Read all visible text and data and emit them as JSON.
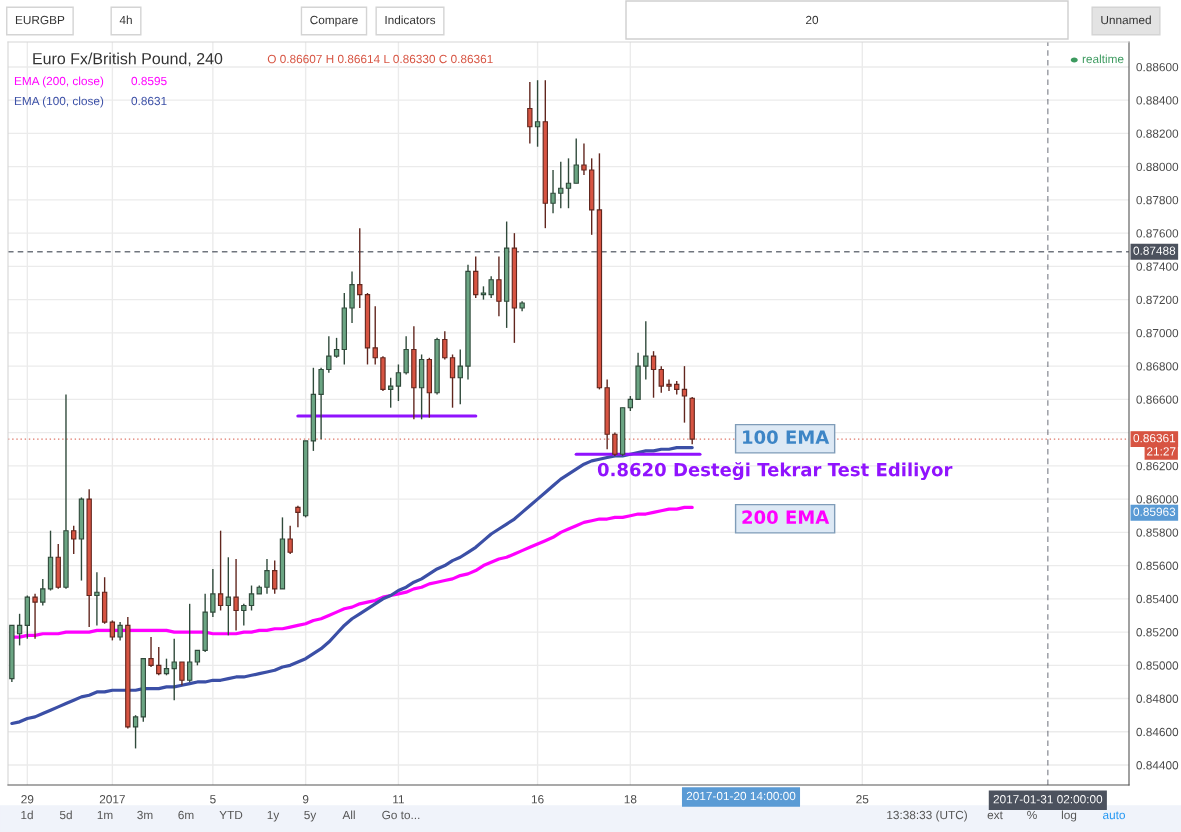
{
  "chart_data": {
    "type": "candlestick",
    "title": "Euro Fx/British Pound, 240",
    "categories": [
      null,
      null,
      "29",
      null,
      null,
      null,
      null,
      null,
      null,
      null,
      null,
      null,
      null,
      "2017",
      null,
      null,
      null,
      null,
      null,
      null,
      null,
      null,
      null,
      null,
      null,
      null,
      "5",
      null,
      null,
      null,
      null,
      null,
      null,
      null,
      null,
      null,
      null,
      null,
      "9",
      null,
      null,
      null,
      null,
      null,
      null,
      null,
      null,
      null,
      null,
      null,
      "11",
      null,
      null,
      null,
      null,
      null,
      null,
      null,
      null,
      null,
      null,
      null,
      null,
      null,
      null,
      null,
      null,
      null,
      "16",
      null,
      null,
      null,
      null,
      null,
      null,
      null,
      null,
      null,
      null,
      null,
      "18",
      null,
      null,
      null,
      null,
      null,
      null,
      null,
      null,
      null,
      null,
      null,
      null,
      null,
      null,
      null,
      null,
      null,
      null,
      null,
      null,
      null,
      null,
      null,
      null,
      null,
      null,
      null,
      null,
      null,
      "25",
      null,
      null,
      null,
      null,
      null,
      null,
      null,
      null,
      null,
      null,
      null,
      null,
      null,
      null,
      null,
      null,
      null,
      null,
      null,
      null,
      null,
      null,
      null,
      "2017-01-31 02:00:00",
      null,
      null,
      null,
      null,
      null,
      null,
      null,
      null,
      null,
      null
    ],
    "series": [
      {
        "type": "candlestick",
        "ohlc": [
          [
            0.8492,
            0.8524,
            0.849,
            0.8524
          ],
          [
            0.8519,
            0.8531,
            0.8512,
            0.8524
          ],
          [
            0.8524,
            0.8542,
            0.8516,
            0.8541
          ],
          [
            0.8541,
            0.8543,
            0.8516,
            0.8538
          ],
          [
            0.8538,
            0.8552,
            0.8536,
            0.8546
          ],
          [
            0.8546,
            0.8581,
            0.8545,
            0.8565
          ],
          [
            0.8565,
            0.8573,
            0.8546,
            0.8547
          ],
          [
            0.8547,
            0.8663,
            0.8546,
            0.8581
          ],
          [
            0.8581,
            0.8584,
            0.8567,
            0.8576
          ],
          [
            0.8576,
            0.8601,
            0.8551,
            0.86
          ],
          [
            0.86,
            0.8606,
            0.8523,
            0.8542
          ],
          [
            0.8542,
            0.8556,
            0.8524,
            0.8544
          ],
          [
            0.8544,
            0.8553,
            0.8525,
            0.8526
          ],
          [
            0.8526,
            0.8527,
            0.8515,
            0.8517
          ],
          [
            0.8517,
            0.8526,
            0.8515,
            0.8524
          ],
          [
            0.8524,
            0.8529,
            0.8462,
            0.8463
          ],
          [
            0.8463,
            0.847,
            0.845,
            0.8469
          ],
          [
            0.8469,
            0.8504,
            0.8466,
            0.8504
          ],
          [
            0.8504,
            0.8517,
            0.8499,
            0.85
          ],
          [
            0.85,
            0.8511,
            0.8494,
            0.8495
          ],
          [
            0.8495,
            0.8504,
            0.8494,
            0.8498
          ],
          [
            0.8498,
            0.8516,
            0.8479,
            0.8502
          ],
          [
            0.8502,
            0.8502,
            0.8488,
            0.8491
          ],
          [
            0.8491,
            0.8537,
            0.849,
            0.8502
          ],
          [
            0.8502,
            0.8509,
            0.85,
            0.8509
          ],
          [
            0.8509,
            0.8543,
            0.8508,
            0.8532
          ],
          [
            0.8532,
            0.8558,
            0.8529,
            0.8543
          ],
          [
            0.8543,
            0.8581,
            0.8533,
            0.8536
          ],
          [
            0.8536,
            0.8565,
            0.8518,
            0.8541
          ],
          [
            0.8541,
            0.8564,
            0.8521,
            0.8533
          ],
          [
            0.8533,
            0.8537,
            0.8524,
            0.8536
          ],
          [
            0.8536,
            0.8548,
            0.8533,
            0.8543
          ],
          [
            0.8543,
            0.8548,
            0.8543,
            0.8547
          ],
          [
            0.8547,
            0.8564,
            0.8543,
            0.8557
          ],
          [
            0.8557,
            0.8563,
            0.8543,
            0.8546
          ],
          [
            0.8546,
            0.8589,
            0.8546,
            0.8576
          ],
          [
            0.8576,
            0.8584,
            0.8567,
            0.8568
          ],
          [
            0.8595,
            0.8596,
            0.8583,
            0.8592
          ],
          [
            0.859,
            0.8635,
            0.8589,
            0.8635
          ],
          [
            0.8635,
            0.8679,
            0.8629,
            0.8663
          ],
          [
            0.8663,
            0.8679,
            0.8636,
            0.8678
          ],
          [
            0.8678,
            0.8698,
            0.8676,
            0.8686
          ],
          [
            0.8686,
            0.8697,
            0.8685,
            0.869
          ],
          [
            0.869,
            0.8724,
            0.8681,
            0.8715
          ],
          [
            0.8715,
            0.8737,
            0.8706,
            0.8729
          ],
          [
            0.8729,
            0.8763,
            0.8715,
            0.8723
          ],
          [
            0.8723,
            0.8724,
            0.8681,
            0.8691
          ],
          [
            0.8691,
            0.8716,
            0.8681,
            0.8685
          ],
          [
            0.8685,
            0.8686,
            0.8665,
            0.8666
          ],
          [
            0.8666,
            0.8673,
            0.8655,
            0.8668
          ],
          [
            0.8668,
            0.8681,
            0.8659,
            0.8676
          ],
          [
            0.8676,
            0.8698,
            0.8675,
            0.869
          ],
          [
            0.869,
            0.8704,
            0.8648,
            0.8667
          ],
          [
            0.8667,
            0.8687,
            0.8648,
            0.8684
          ],
          [
            0.8684,
            0.8685,
            0.8649,
            0.8664
          ],
          [
            0.8664,
            0.8697,
            0.8663,
            0.8696
          ],
          [
            0.8696,
            0.8701,
            0.8684,
            0.8685
          ],
          [
            0.8685,
            0.8687,
            0.8655,
            0.8673
          ],
          [
            0.8673,
            0.869,
            0.8657,
            0.868
          ],
          [
            0.868,
            0.8741,
            0.8672,
            0.8737
          ],
          [
            0.8737,
            0.8746,
            0.8721,
            0.8723
          ],
          [
            0.8723,
            0.8728,
            0.872,
            0.8724
          ],
          [
            0.8723,
            0.8734,
            0.8721,
            0.8732
          ],
          [
            0.8732,
            0.8746,
            0.871,
            0.8719
          ],
          [
            0.8719,
            0.8767,
            0.8703,
            0.8751
          ],
          [
            0.8751,
            0.876,
            0.8694,
            0.8715
          ],
          [
            0.8715,
            0.8719,
            0.8713,
            0.8718
          ],
          [
            0.8835,
            0.8851,
            0.8814,
            0.8824
          ],
          [
            0.8824,
            0.8852,
            0.8812,
            0.8827
          ],
          [
            0.8827,
            0.8852,
            0.8763,
            0.8778
          ],
          [
            0.8778,
            0.8798,
            0.8772,
            0.8784
          ],
          [
            0.8784,
            0.8803,
            0.8775,
            0.8787
          ],
          [
            0.8787,
            0.8805,
            0.8775,
            0.879
          ],
          [
            0.879,
            0.8817,
            0.879,
            0.8801
          ],
          [
            0.8801,
            0.8814,
            0.8795,
            0.8798
          ],
          [
            0.8798,
            0.8805,
            0.8759,
            0.8774
          ],
          [
            0.8774,
            0.8808,
            0.8666,
            0.8667
          ],
          [
            0.8667,
            0.8672,
            0.863,
            0.8639
          ],
          [
            0.8639,
            0.864,
            0.8626,
            0.8627
          ],
          [
            0.8627,
            0.8655,
            0.8626,
            0.8655
          ],
          [
            0.8655,
            0.8662,
            0.8653,
            0.866
          ],
          [
            0.866,
            0.8688,
            0.866,
            0.868
          ],
          [
            0.868,
            0.8707,
            0.8672,
            0.8686
          ],
          [
            0.8686,
            0.8689,
            0.8661,
            0.8678
          ],
          [
            0.8678,
            0.868,
            0.8664,
            0.8668
          ],
          [
            0.8669,
            0.8672,
            0.8665,
            0.8668
          ],
          [
            0.8669,
            0.8671,
            0.8663,
            0.8666
          ],
          [
            0.8666,
            0.868,
            0.8646,
            0.8662
          ],
          [
            0.86607,
            0.86614,
            0.8633,
            0.86361
          ],
          null,
          null,
          null,
          null,
          null,
          null,
          null,
          null,
          null,
          null,
          null,
          null,
          null,
          null,
          null,
          null,
          null,
          null,
          null,
          null,
          null,
          null,
          null,
          null,
          null,
          null,
          null,
          null,
          null,
          null,
          null,
          null,
          null,
          null,
          null,
          null,
          null,
          null,
          null,
          null,
          null,
          null,
          null,
          null,
          null,
          null,
          null,
          null,
          null,
          null,
          null,
          null,
          null,
          null,
          null,
          null
        ],
        "colors": [
          "#6ba583",
          "#6ba583",
          "#6ba583",
          "#d75442",
          "#6ba583",
          "#6ba583",
          "#d75442",
          "#6ba583",
          "#d75442",
          "#6ba583",
          "#d75442",
          "#6ba583",
          "#d75442",
          "#d75442",
          "#6ba583",
          "#d75442",
          "#6ba583",
          "#6ba583",
          "#d75442",
          "#d75442",
          "#6ba583",
          "#6ba583",
          "#d75442",
          "#6ba583",
          "#6ba583",
          "#6ba583",
          "#6ba583",
          "#d75442",
          "#6ba583",
          "#d75442",
          "#6ba583",
          "#6ba583",
          "#6ba583",
          "#6ba583",
          "#d75442",
          "#6ba583",
          "#d75442",
          "#d75442",
          "#6ba583",
          "#6ba583",
          "#6ba583",
          "#6ba583",
          "#6ba583",
          "#6ba583",
          "#6ba583",
          "#d75442",
          "#d75442",
          "#d75442",
          "#d75442",
          "#6ba583",
          "#6ba583",
          "#6ba583",
          "#d75442",
          "#6ba583",
          "#d75442",
          "#6ba583",
          "#d75442",
          "#d75442",
          "#6ba583",
          "#6ba583",
          "#d75442",
          "#6ba583",
          "#6ba583",
          "#d75442",
          "#6ba583",
          "#d75442",
          "#6ba583",
          "#d75442",
          "#6ba583",
          "#d75442",
          "#6ba583",
          "#6ba583",
          "#6ba583",
          "#6ba583",
          "#d75442",
          "#d75442",
          "#d75442",
          "#d75442",
          "#d75442",
          "#6ba583",
          "#6ba583",
          "#6ba583",
          "#6ba583",
          "#d75442",
          "#d75442",
          "#d75442",
          "#d75442",
          "#d75442",
          "#d75442",
          null,
          null,
          null,
          null,
          null,
          null,
          null,
          null,
          null,
          null,
          null,
          null,
          null,
          null,
          null,
          null,
          null,
          null,
          null,
          null,
          null,
          null,
          null,
          null,
          null,
          null,
          null,
          null,
          null,
          null,
          null,
          null,
          null,
          null,
          null,
          null,
          null,
          null,
          null,
          null,
          null,
          null,
          null,
          null,
          null,
          null,
          null,
          null,
          null,
          null,
          null,
          null,
          null,
          null,
          null,
          null
        ]
      },
      {
        "type": "line",
        "name": "EMA (200, close)",
        "color": "#ff00ff",
        "values": [
          0.8517,
          0.8517,
          0.8518,
          0.8518,
          0.8519,
          0.8519,
          0.8519,
          0.852,
          0.852,
          0.852,
          0.852,
          0.8521,
          0.8521,
          0.8521,
          0.8521,
          0.8521,
          0.8521,
          0.8521,
          0.8521,
          0.8521,
          0.8521,
          0.852,
          0.852,
          0.852,
          0.852,
          0.852,
          0.8519,
          0.8519,
          0.8519,
          0.8519,
          0.852,
          0.852,
          0.8521,
          0.8521,
          0.8522,
          0.8522,
          0.8523,
          0.8524,
          0.8525,
          0.8527,
          0.8528,
          0.853,
          0.8532,
          0.8534,
          0.8535,
          0.8537,
          0.8538,
          0.8539,
          0.8541,
          0.8542,
          0.8543,
          0.8544,
          0.8546,
          0.8547,
          0.8549,
          0.855,
          0.8551,
          0.8552,
          0.8554,
          0.8555,
          0.8557,
          0.856,
          0.8562,
          0.8564,
          0.8565,
          0.8567,
          0.8569,
          0.8571,
          0.8573,
          0.8575,
          0.8577,
          0.858,
          0.8582,
          0.8584,
          0.8586,
          0.8587,
          0.8588,
          0.8588,
          0.8589,
          0.8589,
          0.859,
          0.8591,
          0.8591,
          0.8592,
          0.8593,
          0.8594,
          0.8594,
          0.8595,
          0.8595,
          null,
          null,
          null,
          null,
          null,
          null,
          null,
          null,
          null,
          null,
          null,
          null,
          null,
          null,
          null,
          null,
          null,
          null,
          null,
          null,
          null,
          null,
          null,
          null,
          null,
          null,
          null,
          null,
          null,
          null,
          null,
          null,
          null,
          null,
          null,
          null,
          null,
          null,
          null,
          null,
          null,
          null,
          null,
          null,
          null,
          null,
          null,
          null,
          null,
          null,
          null,
          null,
          null,
          null,
          null,
          null
        ]
      },
      {
        "type": "line",
        "name": "EMA (100, close)",
        "color": "#3b4fa6",
        "values": [
          0.8465,
          0.8466,
          0.8468,
          0.8469,
          0.8471,
          0.8473,
          0.8475,
          0.8477,
          0.8479,
          0.8481,
          0.8482,
          0.8484,
          0.8484,
          0.8485,
          0.8485,
          0.8485,
          0.8485,
          0.8486,
          0.8486,
          0.8486,
          0.8487,
          0.8487,
          0.8488,
          0.8489,
          0.849,
          0.849,
          0.8491,
          0.8491,
          0.8492,
          0.8493,
          0.8493,
          0.8494,
          0.8495,
          0.8496,
          0.8497,
          0.8499,
          0.85,
          0.8502,
          0.8504,
          0.8507,
          0.851,
          0.8514,
          0.8519,
          0.8524,
          0.8528,
          0.8531,
          0.8534,
          0.8537,
          0.854,
          0.8542,
          0.8545,
          0.8547,
          0.855,
          0.8552,
          0.8555,
          0.8558,
          0.856,
          0.8563,
          0.8565,
          0.8568,
          0.8571,
          0.8575,
          0.8579,
          0.8582,
          0.8585,
          0.8588,
          0.8592,
          0.8596,
          0.86,
          0.8604,
          0.8608,
          0.8612,
          0.8615,
          0.8618,
          0.8621,
          0.8623,
          0.8624,
          0.8625,
          0.8626,
          0.8626,
          0.8627,
          0.8628,
          0.8629,
          0.8629,
          0.863,
          0.863,
          0.8631,
          0.8631,
          0.8631,
          null,
          null,
          null,
          null,
          null,
          null,
          null,
          null,
          null,
          null,
          null,
          null,
          null,
          null,
          null,
          null,
          null,
          null,
          null,
          null,
          null,
          null,
          null,
          null,
          null,
          null,
          null,
          null,
          null,
          null,
          null,
          null,
          null,
          null,
          null,
          null,
          null,
          null,
          null,
          null,
          null,
          null,
          null,
          null,
          null,
          null,
          null,
          null,
          null,
          null,
          null,
          null,
          null,
          null,
          null,
          null
        ]
      },
      {
        "type": "line",
        "color": "#9013fe",
        "values": [
          null,
          null,
          null,
          null,
          null,
          null,
          null,
          null,
          null,
          null,
          null,
          null,
          null,
          null,
          null,
          null,
          null,
          null,
          null,
          null,
          null,
          null,
          null,
          null,
          null,
          null,
          null,
          null,
          null,
          null,
          null,
          null,
          null,
          null,
          null,
          null,
          null,
          0.865,
          0.865,
          0.865,
          0.865,
          0.865,
          0.865,
          0.865,
          0.865,
          0.865,
          0.865,
          0.865,
          0.865,
          0.865,
          0.865,
          0.865,
          0.865,
          0.865,
          0.865,
          0.865,
          0.865,
          0.865,
          0.865,
          0.865,
          0.865,
          null,
          null,
          null,
          null,
          null,
          null,
          null,
          null,
          null,
          null,
          null,
          null,
          null,
          null,
          null,
          null,
          null,
          null,
          null,
          null,
          null,
          null,
          null,
          null,
          null,
          null,
          null,
          null,
          null,
          null,
          null,
          null,
          null,
          null,
          null,
          null,
          null,
          null,
          null,
          null,
          null,
          null,
          null,
          null,
          null,
          null,
          null,
          null,
          null,
          null,
          null,
          null,
          null,
          null,
          null,
          null,
          null,
          null,
          null,
          null,
          null,
          null,
          null,
          null,
          null,
          null,
          null,
          null,
          null,
          null,
          null,
          null,
          null,
          null,
          null,
          null,
          null,
          null,
          null,
          null,
          null,
          null,
          null,
          null
        ]
      },
      {
        "type": "line",
        "color": "#9013fe",
        "values": [
          null,
          null,
          null,
          null,
          null,
          null,
          null,
          null,
          null,
          null,
          null,
          null,
          null,
          null,
          null,
          null,
          null,
          null,
          null,
          null,
          null,
          null,
          null,
          null,
          null,
          null,
          null,
          null,
          null,
          null,
          null,
          null,
          null,
          null,
          null,
          null,
          null,
          null,
          null,
          null,
          null,
          null,
          null,
          null,
          null,
          null,
          null,
          null,
          null,
          null,
          null,
          null,
          null,
          null,
          null,
          null,
          null,
          null,
          null,
          null,
          null,
          null,
          null,
          null,
          null,
          null,
          null,
          null,
          null,
          null,
          null,
          null,
          null,
          0.8627,
          0.8627,
          0.8627,
          0.8627,
          0.8627,
          0.8627,
          0.8627,
          0.8627,
          0.8627,
          0.8627,
          0.8627,
          0.8627,
          0.8627,
          0.8627,
          0.8627,
          0.8627,
          0.8627,
          null,
          null,
          null,
          null,
          null,
          null,
          null,
          null,
          null,
          null,
          null,
          null,
          null,
          null,
          null,
          null,
          null,
          null,
          null,
          null,
          null,
          null,
          null,
          null,
          null,
          null,
          null,
          null,
          null,
          null,
          null,
          null,
          null,
          null,
          null,
          null,
          null,
          null,
          null,
          null,
          null,
          null,
          null,
          null,
          null,
          null,
          null,
          null,
          null,
          null,
          null,
          null,
          null,
          null,
          null
        ]
      }
    ],
    "ylim": [
      0.8428,
      0.8875
    ],
    "yticks": [
      {
        "value": 0.844,
        "label": "0.84400"
      },
      {
        "value": 0.846,
        "label": "0.84600"
      },
      {
        "value": 0.848,
        "label": "0.84800"
      },
      {
        "value": 0.85,
        "label": "0.85000"
      },
      {
        "value": 0.852,
        "label": "0.85200"
      },
      {
        "value": 0.854,
        "label": "0.85400"
      },
      {
        "value": 0.856,
        "label": "0.85600"
      },
      {
        "value": 0.858,
        "label": "0.85800"
      },
      {
        "value": 0.86,
        "label": "0.86000"
      },
      {
        "value": 0.862,
        "label": "0.86200"
      },
      {
        "value": 0.864,
        "label": null
      },
      {
        "value": 0.866,
        "label": "0.86600"
      },
      {
        "value": 0.868,
        "label": "0.86800"
      },
      {
        "value": 0.87,
        "label": "0.87000"
      },
      {
        "value": 0.872,
        "label": "0.87200"
      },
      {
        "value": 0.874,
        "label": "0.87400"
      },
      {
        "value": 0.876,
        "label": "0.87600"
      },
      {
        "value": 0.878,
        "label": "0.87800"
      },
      {
        "value": 0.88,
        "label": "0.88000"
      },
      {
        "value": 0.882,
        "label": "0.88200"
      },
      {
        "value": 0.884,
        "label": "0.88400"
      },
      {
        "value": 0.886,
        "label": "0.88600"
      }
    ],
    "grid": true,
    "legend": "top left",
    "ref_lines": [
      {
        "axis": "y",
        "value": 0.87488,
        "label": "0.87488",
        "color": "#4c525e",
        "line_style": "dashed"
      },
      {
        "axis": "y",
        "value": 0.86361,
        "label": "0.86361",
        "color": "#d75442",
        "line_style": "dotted"
      },
      {
        "axis": "x",
        "value": "2017-01-31 02:00:00",
        "color": "#4c525e",
        "line_style": "dashed"
      }
    ],
    "annotations": [
      "O 0.86607 H 0.86614 L 0.86330 C 0.86361",
      "0.8595",
      "0.8631",
      "realtime",
      "21:27",
      "100 EMA",
      "0.8620 Desteği Tekrar Test Ediliyor",
      "200 EMA",
      "0.85963",
      "2017-01-20 14:00:00",
      "EURGBP",
      "4h",
      "Compare",
      "Indicators",
      "20",
      "Unnamed",
      "1d",
      "5d",
      "1m",
      "3m",
      "6m",
      "YTD",
      "1y",
      "5y",
      "All",
      "Go to...",
      "13:38:33 (UTC)",
      "ext",
      "%",
      "log",
      "auto"
    ]
  }
}
